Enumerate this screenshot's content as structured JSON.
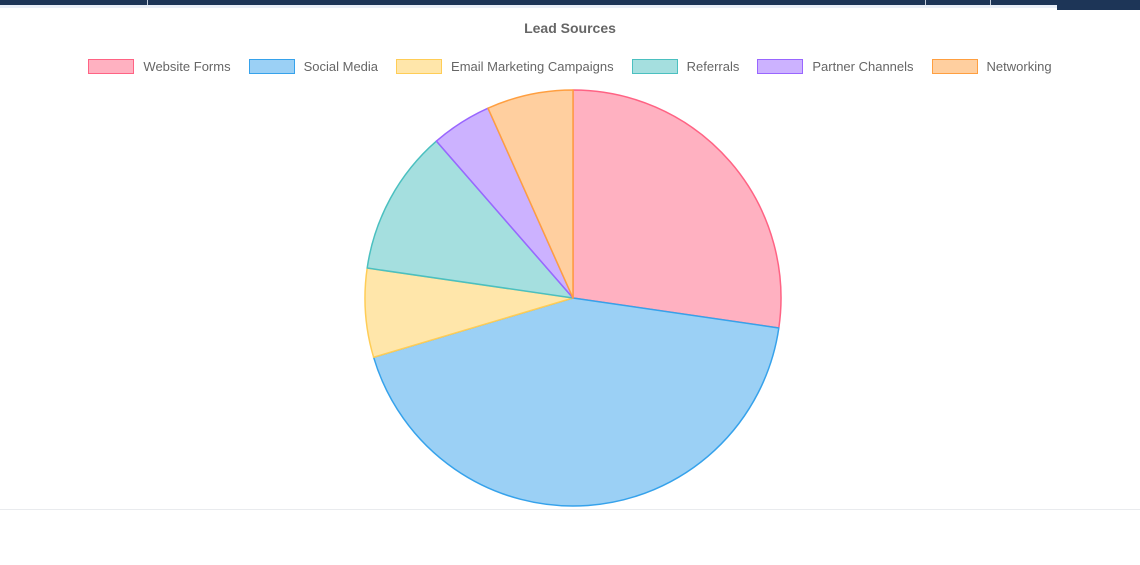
{
  "app": {
    "top_bar": {
      "color": "#1d3557",
      "strip_color": "#e9eff8",
      "divider_color": "#c3cddc"
    }
  },
  "panel": {
    "divider_color": "#e9ebee"
  },
  "chart_data": {
    "type": "pie",
    "title": "Lead Sources",
    "legend_position": "top",
    "text_color": "#666666",
    "labels": [
      "Website Forms",
      "Social Media",
      "Email Marketing Campaigns",
      "Referrals",
      "Partner Channels",
      "Networking"
    ],
    "values": [
      27.3,
      43.1,
      6.9,
      11.3,
      4.7,
      6.7
    ],
    "unit": "percent",
    "start_angle_deg": 0,
    "direction": "clockwise",
    "colors": {
      "fill": [
        "#FFB1C1",
        "#9BD0F5",
        "#FFE6AA",
        "#A5DFDF",
        "#CCB2FF",
        "#FFCF9F"
      ],
      "border": [
        "#FF6384",
        "#36A2EB",
        "#FFCD56",
        "#4BC0C0",
        "#9966FF",
        "#FF9F40"
      ]
    }
  }
}
